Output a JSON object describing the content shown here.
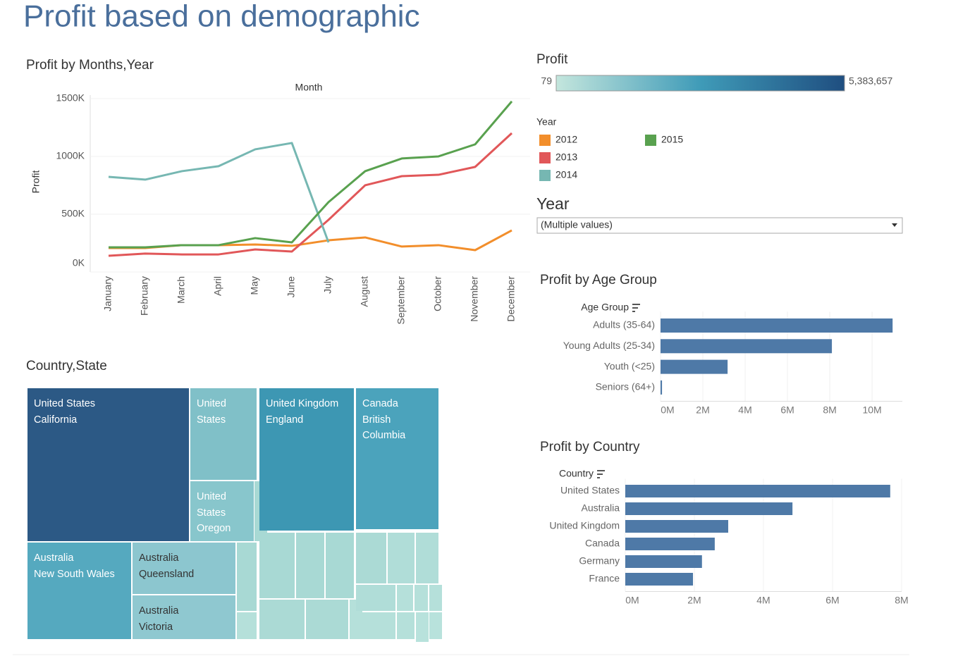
{
  "title": "Profit based on demographic",
  "chart_data": [
    {
      "type": "line",
      "title": "Profit by Months,Year",
      "x_label": "Month",
      "y_label": "Profit",
      "categories": [
        "January",
        "February",
        "March",
        "April",
        "May",
        "June",
        "July",
        "August",
        "September",
        "October",
        "November",
        "December"
      ],
      "series": [
        {
          "name": "2012",
          "color": "#f28e2b",
          "values": [
            207000,
            207000,
            232000,
            232000,
            238000,
            226000,
            274000,
            299000,
            220000,
            232000,
            189000,
            360000
          ]
        },
        {
          "name": "2013",
          "color": "#e15759",
          "values": [
            140000,
            159000,
            152000,
            152000,
            195000,
            177000,
            451000,
            750000,
            829000,
            841000,
            909000,
            1201000
          ]
        },
        {
          "name": "2014",
          "color": "#76b7b2",
          "values": [
            823000,
            799000,
            872000,
            915000,
            1061000,
            1116000,
            256000,
            null,
            null,
            null,
            null,
            null
          ]
        },
        {
          "name": "2015",
          "color": "#59a14f",
          "values": [
            213000,
            213000,
            232000,
            232000,
            293000,
            256000,
            604000,
            872000,
            982000,
            1000000,
            1104000,
            1476000
          ]
        }
      ],
      "ylim": [
        0,
        1530000
      ],
      "yticks": [
        {
          "value": 0,
          "label": "0K"
        },
        {
          "value": 500000,
          "label": "500K"
        },
        {
          "value": 1000000,
          "label": "1000K"
        },
        {
          "value": 1500000,
          "label": "1500K"
        }
      ],
      "grid": true
    },
    {
      "type": "treemap",
      "title": "Country,State",
      "tiles": [
        {
          "country": "United States",
          "state": "California",
          "color": "#2c5985"
        },
        {
          "country": "United States",
          "color": "#80c0c8"
        },
        {
          "country": "United States",
          "state": "Oregon",
          "color": "#88c6cc"
        },
        {
          "country": "United Kingdom",
          "state": "England",
          "color": "#3d97b3"
        },
        {
          "country": "Canada",
          "state": "British Columbia",
          "color": "#4ba3bc"
        },
        {
          "country": "Australia",
          "state": "New South Wales",
          "color": "#55a9bf"
        },
        {
          "country": "Australia",
          "state": "Queensland",
          "color": "#8cc6cf"
        },
        {
          "country": "Australia",
          "state": "Victoria",
          "color": "#8fc8d0"
        }
      ]
    },
    {
      "type": "hbar",
      "title": "Profit by Age Group",
      "axis_title": "Age Group",
      "color": "#4e79a7",
      "categories": [
        "Adults (35-64)",
        "Young Adults (25-34)",
        "Youth (<25)",
        "Seniors (64+)"
      ],
      "values": [
        10970000,
        8100000,
        3170000,
        70000
      ],
      "xlim": [
        0,
        11430000
      ],
      "xticks": [
        {
          "value": 0,
          "label": "0M"
        },
        {
          "value": 2000000,
          "label": "2M"
        },
        {
          "value": 4000000,
          "label": "4M"
        },
        {
          "value": 6000000,
          "label": "6M"
        },
        {
          "value": 8000000,
          "label": "8M"
        },
        {
          "value": 10000000,
          "label": "10M"
        }
      ],
      "grid": true
    },
    {
      "type": "hbar",
      "title": "Profit by Country",
      "axis_title": "Country",
      "color": "#4e79a7",
      "categories": [
        "United States",
        "Australia",
        "United Kingdom",
        "Canada",
        "Germany",
        "France"
      ],
      "values": [
        7670000,
        4840000,
        2980000,
        2590000,
        2220000,
        1960000
      ],
      "xlim": [
        0,
        8000000
      ],
      "xticks": [
        {
          "value": 0,
          "label": "0M"
        },
        {
          "value": 2000000,
          "label": "2M"
        },
        {
          "value": 4000000,
          "label": "4M"
        },
        {
          "value": 6000000,
          "label": "6M"
        },
        {
          "value": 8000000,
          "label": "8M"
        }
      ],
      "grid": true
    }
  ],
  "color_legend": {
    "title": "Profit",
    "min": 79,
    "max": {
      "value": 5383657,
      "label": "5,383,657"
    },
    "colors": [
      "#c4e6dd",
      "#3f9bb8",
      "#1f4e80"
    ]
  },
  "year_legend_title": "Year",
  "filter": {
    "title": "Year",
    "value": "(Multiple values)"
  }
}
